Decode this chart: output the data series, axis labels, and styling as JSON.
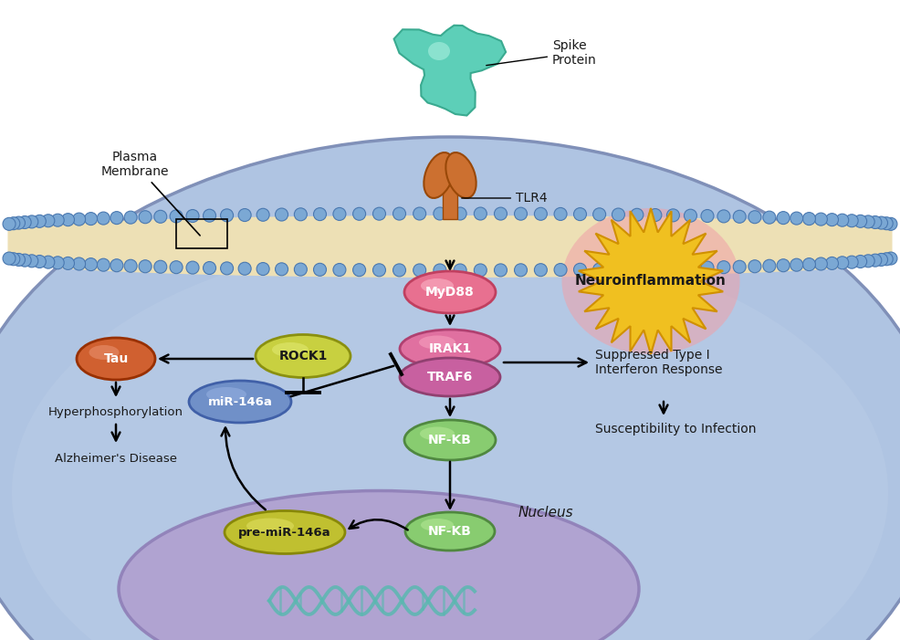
{
  "bg": "#ffffff",
  "cell_fill": "#afc4e2",
  "cell_edge": "#8090b8",
  "nucleus_fill": "#b0a0d0",
  "nucleus_edge": "#9080b8",
  "membrane_fill": "#ede0b5",
  "bead_fill": "#7ba8d4",
  "bead_edge": "#4a78b0",
  "spike_fill": "#5dcfb8",
  "spike_edge": "#3aaa90",
  "tlr4_fill": "#cc7030",
  "tlr4_edge": "#994808",
  "myd88_fill": "#e87090",
  "myd88_edge": "#c04060",
  "irak1_fill": "#e070a0",
  "irak1_edge": "#b04070",
  "traf6_fill": "#c860a0",
  "traf6_edge": "#904070",
  "nfkb_fill": "#88cc70",
  "nfkb_edge": "#508840",
  "rock1_fill": "#c8d040",
  "rock1_edge": "#8a9010",
  "mir_fill": "#7090c8",
  "mir_edge": "#4060a8",
  "tau_fill": "#d06030",
  "tau_edge": "#983000",
  "premir_fill": "#c0c030",
  "premir_edge": "#888808",
  "neuro_fill": "#f0c020",
  "neuro_edge": "#d09000",
  "neuro_glow": "#f0a0a8",
  "text_dark": "#1a1a1a",
  "text_white": "#ffffff",
  "figsize": [
    9.86,
    7.01
  ],
  "dpi": 100,
  "labels": {
    "spike": "Spike\nProtein",
    "tlr4": "TLR4",
    "plasma": "Plasma\nMembrane",
    "myd88": "MyD88",
    "neuroinflam": "Neuroinflammation",
    "irak1": "IRAK1",
    "traf6": "TRAF6",
    "nfkb": "NF-KB",
    "rock1": "ROCK1",
    "mir146a": "miR-146a",
    "tau": "Tau",
    "premir": "pre-miR-146a",
    "nucleus": "Nucleus",
    "hyperphospho": "Hyperphosphorylation",
    "alzheimer": "Alzheimer's Disease",
    "suppressed": "Suppressed Type I\nInterferon Response",
    "susceptibility": "Susceptibility to Infection"
  }
}
